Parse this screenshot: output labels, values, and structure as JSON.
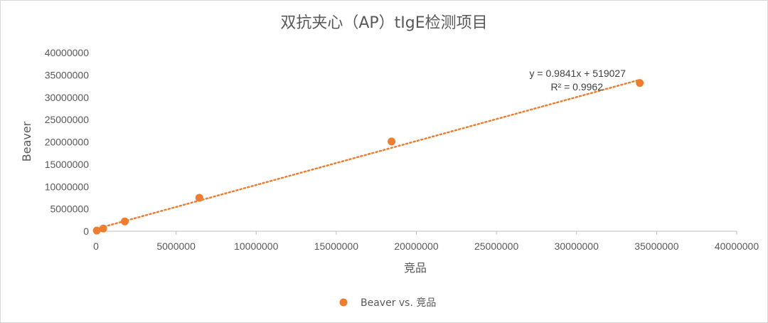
{
  "chart_data": {
    "type": "scatter",
    "title": "双抗夹心（AP）tIgE检测项目",
    "xlabel": "竞品",
    "ylabel": "Beaver",
    "xlim": [
      0,
      40000000
    ],
    "ylim": [
      0,
      40000000
    ],
    "x_ticks": [
      "0",
      "5000000",
      "10000000",
      "15000000",
      "20000000",
      "25000000",
      "30000000",
      "35000000",
      "40000000"
    ],
    "y_ticks": [
      "0",
      "5000000",
      "10000000",
      "15000000",
      "20000000",
      "25000000",
      "30000000",
      "35000000",
      "40000000"
    ],
    "grid": false,
    "legend_position": "bottom",
    "series": [
      {
        "name": "Beaver vs. 竞品",
        "color": "#ED7D31",
        "points": [
          {
            "x": 50000,
            "y": 150000
          },
          {
            "x": 450000,
            "y": 600000
          },
          {
            "x": 1800000,
            "y": 2200000
          },
          {
            "x": 6450000,
            "y": 7500000
          },
          {
            "x": 18450000,
            "y": 20100000
          },
          {
            "x": 33950000,
            "y": 33200000
          }
        ]
      }
    ],
    "trendline": {
      "type": "linear",
      "slope": 0.9841,
      "intercept": 519027,
      "r2": 0.9962,
      "equation_label": "y = 0.9841x + 519027",
      "r2_label": "R² = 0.9962",
      "color": "#ED7D31"
    }
  }
}
